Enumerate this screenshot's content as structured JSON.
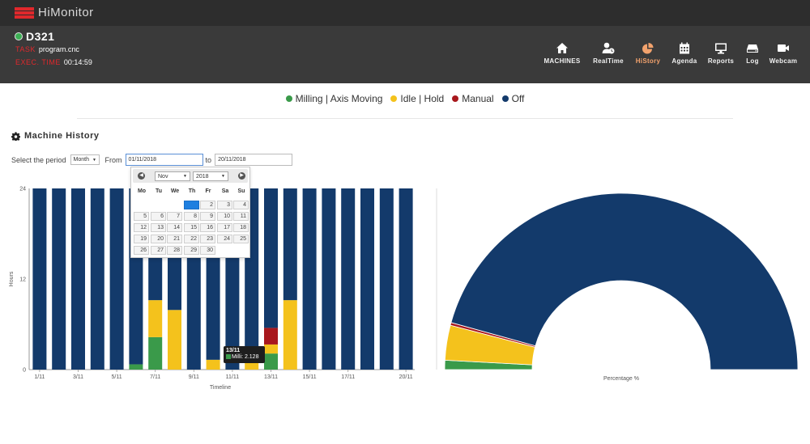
{
  "app": {
    "title": "HiMonitor"
  },
  "machine": {
    "name": "D321",
    "task_label": "TASK",
    "task": "program.cnc",
    "exec_label": "EXEC. TIME",
    "exec_time": "00:14:59"
  },
  "nav": [
    {
      "label": "MACHINES",
      "icon": "home-icon",
      "active": false
    },
    {
      "label": "RealTime",
      "icon": "user-clock-icon",
      "active": false
    },
    {
      "label": "HiStory",
      "icon": "pie-chart-icon",
      "active": true
    },
    {
      "label": "Agenda",
      "icon": "calendar-icon",
      "active": false
    },
    {
      "label": "Reports",
      "icon": "monitor-icon",
      "active": false
    },
    {
      "label": "Log",
      "icon": "hard-drive-icon",
      "active": false
    },
    {
      "label": "Webcam",
      "icon": "video-camera-icon",
      "active": false
    }
  ],
  "legend": [
    {
      "label": "Milling | Axis Moving",
      "color": "#3a9a4a"
    },
    {
      "label": "Idle | Hold",
      "color": "#f4c21c"
    },
    {
      "label": "Manual",
      "color": "#a8181d"
    },
    {
      "label": "Off",
      "color": "#133a6b"
    }
  ],
  "section": {
    "title": "Machine History",
    "icon": "gear-icon"
  },
  "period": {
    "label": "Select the period",
    "select_value": "Month",
    "from_label": "From",
    "from_value": "01/11/2018",
    "to_label": "to",
    "to_value": "20/11/2018"
  },
  "calendar": {
    "month": "Nov",
    "year": "2018",
    "weekdays": [
      "Mo",
      "Tu",
      "We",
      "Th",
      "Fr",
      "Sa",
      "Su"
    ],
    "first_weekday_index": 3,
    "days_in_month": 30,
    "visible_days": [
      1,
      2,
      3,
      4,
      5,
      6,
      7,
      8,
      9,
      10,
      11,
      12,
      13,
      14,
      15,
      16,
      17,
      18,
      19,
      20,
      21,
      22,
      23,
      24,
      25,
      26,
      27,
      28,
      29,
      30
    ],
    "selected_day": 1
  },
  "tooltip": {
    "date": "13/11",
    "series": "Milli",
    "value": "2.128"
  },
  "chart_data": [
    {
      "type": "bar",
      "stacked": true,
      "xlabel": "Timeline",
      "ylabel": "Hours",
      "ylim": [
        0,
        24
      ],
      "yticks": [
        0,
        12,
        24
      ],
      "xtick_labels": [
        "1/11",
        "3/11",
        "5/11",
        "7/11",
        "9/11",
        "11/11",
        "13/11",
        "15/11",
        "17/11",
        "20/11"
      ],
      "categories": [
        "1/11",
        "2/11",
        "3/11",
        "4/11",
        "5/11",
        "6/11",
        "7/11",
        "8/11",
        "9/11",
        "10/11",
        "11/11",
        "12/11",
        "13/11",
        "14/11",
        "15/11",
        "16/11",
        "17/11",
        "18/11",
        "19/11",
        "20/11"
      ],
      "series": [
        {
          "name": "Milling | Axis Moving",
          "color": "#3a9a4a",
          "values": [
            0,
            0,
            0,
            0,
            0,
            0.7,
            4.3,
            0,
            0,
            0,
            0,
            0,
            2.128,
            0,
            0,
            0,
            0,
            0,
            0,
            0
          ]
        },
        {
          "name": "Idle | Hold",
          "color": "#f4c21c",
          "values": [
            0,
            0,
            0,
            0,
            0,
            0,
            4.9,
            7.9,
            0,
            1.3,
            0,
            1.3,
            1.2,
            9.2,
            0,
            0,
            0,
            0,
            0,
            0
          ]
        },
        {
          "name": "Manual",
          "color": "#a8181d",
          "values": [
            0,
            0,
            0,
            0,
            0,
            0,
            0,
            0,
            0,
            0,
            0,
            0,
            2.2,
            0,
            0,
            0,
            0,
            0,
            0,
            0
          ]
        },
        {
          "name": "Off",
          "color": "#133a6b",
          "values": [
            24,
            24,
            24,
            24,
            24,
            23.3,
            14.8,
            16.1,
            24,
            22.7,
            24,
            22.7,
            18.472,
            14.8,
            24,
            24,
            24,
            24,
            24,
            24
          ]
        }
      ]
    },
    {
      "type": "pie",
      "shape": "half-donut",
      "xlabel": "Percentage %",
      "slices": [
        {
          "name": "Milling | Axis Moving",
          "color": "#3a9a4a",
          "value": 1.7
        },
        {
          "name": "Idle | Hold",
          "color": "#f4c21c",
          "value": 6.4
        },
        {
          "name": "Manual",
          "color": "#a8181d",
          "value": 0.5
        },
        {
          "name": "Off",
          "color": "#133a6b",
          "value": 91.4
        }
      ]
    }
  ]
}
